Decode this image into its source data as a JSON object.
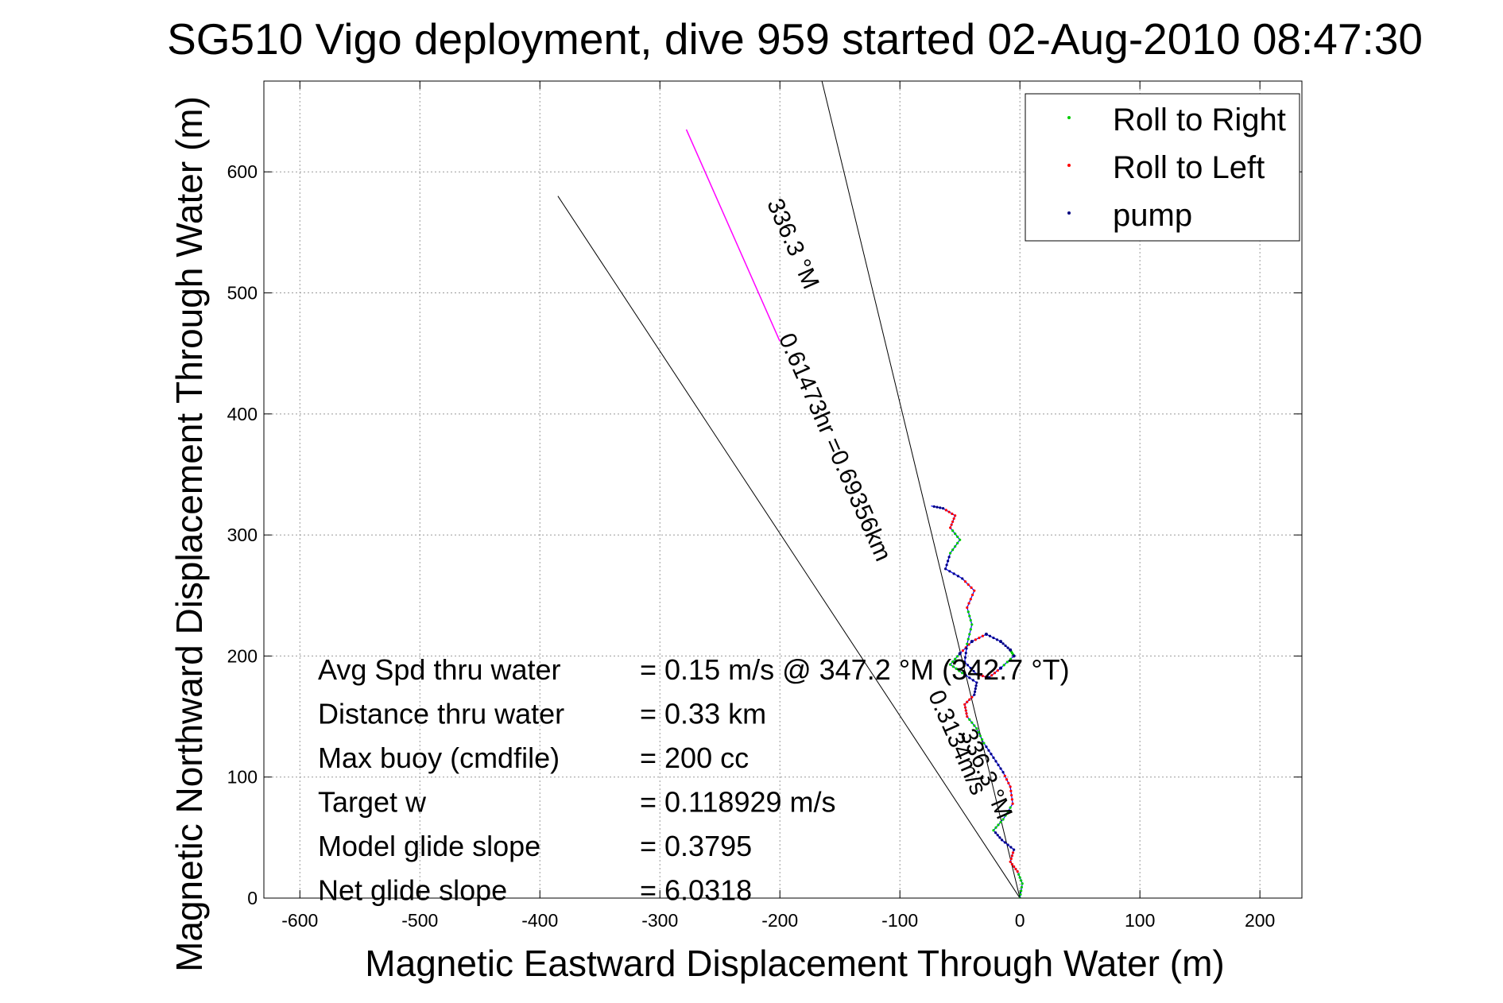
{
  "chart_data": {
    "type": "line",
    "title": "SG510 Vigo deployment, dive 959 started 02-Aug-2010 08:47:30",
    "xlabel": "Magnetic Eastward Displacement Through Water (m)",
    "ylabel": "Magnetic Northward Displacement Through Water (m)",
    "xlim": [
      -630,
      235
    ],
    "ylim": [
      0,
      675
    ],
    "xticks": [
      -600,
      -500,
      -400,
      -300,
      -200,
      -100,
      0,
      100,
      200
    ],
    "yticks": [
      0,
      100,
      200,
      300,
      400,
      500,
      600
    ],
    "xtick_labels": [
      "-600",
      "-500",
      "-400",
      "-300",
      "-200",
      "-100",
      "0",
      "100",
      "200"
    ],
    "ytick_labels": [
      "0",
      "100",
      "200",
      "300",
      "400",
      "500",
      "600"
    ],
    "grid": true,
    "legend_position": "top-right",
    "legend": [
      {
        "label": "Roll to Right",
        "color": "#00cc00"
      },
      {
        "label": "Roll to Left",
        "color": "#ff0000"
      },
      {
        "label": "pump",
        "color": "#000080"
      }
    ],
    "trajectory": {
      "color": "#0000ff",
      "points": [
        [
          0,
          0
        ],
        [
          2,
          12
        ],
        [
          -2,
          22
        ],
        [
          -8,
          30
        ],
        [
          -5,
          40
        ],
        [
          -15,
          48
        ],
        [
          -22,
          56
        ],
        [
          -14,
          65
        ],
        [
          -6,
          78
        ],
        [
          -8,
          92
        ],
        [
          -14,
          104
        ],
        [
          -22,
          116
        ],
        [
          -30,
          128
        ],
        [
          -36,
          140
        ],
        [
          -44,
          150
        ],
        [
          -46,
          160
        ],
        [
          -38,
          168
        ],
        [
          -36,
          178
        ],
        [
          -48,
          186
        ],
        [
          -58,
          193
        ],
        [
          -50,
          202
        ],
        [
          -40,
          212
        ],
        [
          -28,
          218
        ],
        [
          -16,
          212
        ],
        [
          -8,
          205
        ],
        [
          -5,
          200
        ],
        [
          -16,
          190
        ],
        [
          -26,
          182
        ],
        [
          -36,
          185
        ],
        [
          -46,
          195
        ],
        [
          -44,
          210
        ],
        [
          -40,
          226
        ],
        [
          -44,
          240
        ],
        [
          -38,
          254
        ],
        [
          -48,
          264
        ],
        [
          -62,
          272
        ],
        [
          -58,
          285
        ],
        [
          -50,
          296
        ],
        [
          -58,
          306
        ],
        [
          -54,
          316
        ],
        [
          -64,
          322
        ],
        [
          -74,
          324
        ]
      ]
    },
    "reference_lines": [
      {
        "points": [
          [
            0,
            0
          ],
          [
            -385,
            580
          ]
        ],
        "color": "#000000"
      },
      {
        "points": [
          [
            0,
            0
          ],
          [
            -165,
            675
          ]
        ],
        "color": "#000000"
      }
    ],
    "course_line": {
      "points": [
        [
          -200,
          460
        ],
        [
          -278,
          635
        ]
      ],
      "color": "#ff00ff"
    },
    "annotations": [
      {
        "text": "336.3 °M",
        "position_data": [
          -195,
          538
        ],
        "rotation": 66.3
      },
      {
        "text": "0.61473hr =0.69356km",
        "position_data": [
          -160,
          370
        ],
        "rotation": 66.3
      },
      {
        "text": "0.3134m/s",
        "position_data": [
          -58,
          126
        ],
        "rotation": 66.3
      },
      {
        "text": "336.3 °M",
        "position_data": [
          -34,
          100
        ],
        "rotation": 66.3
      }
    ],
    "stats": [
      {
        "label": "Avg Spd thru water",
        "value": "=  0.15 m/s @ 347.2 °M (342.7 °T)"
      },
      {
        "label": "Distance thru water",
        "value": "=  0.33 km"
      },
      {
        "label": "Max buoy (cmdfile)",
        "value": "= 200 cc"
      },
      {
        "label": "Target w",
        "value": "= 0.118929 m/s"
      },
      {
        "label": "Model glide slope",
        "value": "= 0.3795"
      },
      {
        "label": "Net glide slope",
        "value": "= 6.0318"
      }
    ]
  }
}
